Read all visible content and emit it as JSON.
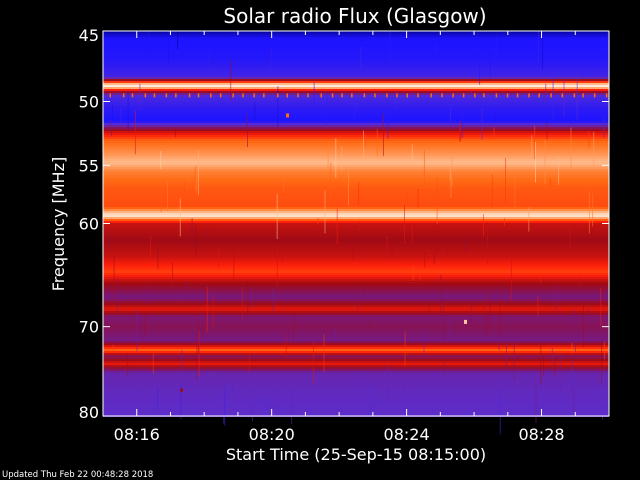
{
  "chart_data": {
    "type": "heatmap",
    "title": "Solar radio Flux (Glasgow)",
    "xlabel": "Start Time (25-Sep-15 08:15:00)",
    "ylabel": "Frequency [MHz]",
    "x_unit": "minutes after 08:15:00",
    "xlim": [
      0,
      15
    ],
    "ylim": [
      45,
      80
    ],
    "y_scale": "log",
    "y_inverted": true,
    "x_ticks": [
      {
        "value": 1,
        "label": "08:16"
      },
      {
        "value": 5,
        "label": "08:20"
      },
      {
        "value": 9,
        "label": "08:24"
      },
      {
        "value": 13,
        "label": "08:28"
      }
    ],
    "y_ticks": [
      {
        "value": 45,
        "label": "45"
      },
      {
        "value": 50,
        "label": "50"
      },
      {
        "value": 55,
        "label": "55"
      },
      {
        "value": 60,
        "label": "60"
      },
      {
        "value": 70,
        "label": "70"
      },
      {
        "value": 80,
        "label": "80"
      }
    ],
    "colormap": [
      "#00008c",
      "#1e14ff",
      "#5a2ed2",
      "#7a1878",
      "#a00a14",
      "#ff1e0a",
      "#ff6a14",
      "#ffc8a0",
      "#ffffff"
    ],
    "intensity_profile": [
      {
        "freq": 45.0,
        "level": 0.02
      },
      {
        "freq": 45.5,
        "level": 0.12
      },
      {
        "freq": 47.0,
        "level": 0.14
      },
      {
        "freq": 48.2,
        "level": 0.2
      },
      {
        "freq": 48.7,
        "level": 0.85
      },
      {
        "freq": 48.9,
        "level": 0.98
      },
      {
        "freq": 49.2,
        "level": 0.55
      },
      {
        "freq": 49.6,
        "level": 0.22
      },
      {
        "freq": 50.5,
        "level": 0.16
      },
      {
        "freq": 51.5,
        "level": 0.12
      },
      {
        "freq": 52.3,
        "level": 0.55
      },
      {
        "freq": 53.0,
        "level": 0.74
      },
      {
        "freq": 54.0,
        "level": 0.8
      },
      {
        "freq": 54.8,
        "level": 0.86
      },
      {
        "freq": 55.5,
        "level": 0.78
      },
      {
        "freq": 57.0,
        "level": 0.72
      },
      {
        "freq": 58.5,
        "level": 0.7
      },
      {
        "freq": 59.3,
        "level": 0.95
      },
      {
        "freq": 60.0,
        "level": 0.55
      },
      {
        "freq": 61.5,
        "level": 0.5
      },
      {
        "freq": 63.0,
        "level": 0.55
      },
      {
        "freq": 64.5,
        "level": 0.68
      },
      {
        "freq": 65.5,
        "level": 0.52
      },
      {
        "freq": 67.0,
        "level": 0.36
      },
      {
        "freq": 68.2,
        "level": 0.6
      },
      {
        "freq": 69.0,
        "level": 0.38
      },
      {
        "freq": 70.0,
        "level": 0.42
      },
      {
        "freq": 71.5,
        "level": 0.36
      },
      {
        "freq": 72.5,
        "level": 0.74
      },
      {
        "freq": 73.2,
        "level": 0.4
      },
      {
        "freq": 74.0,
        "level": 0.6
      },
      {
        "freq": 75.0,
        "level": 0.3
      },
      {
        "freq": 77.0,
        "level": 0.28
      },
      {
        "freq": 80.0,
        "level": 0.26
      }
    ]
  },
  "footer": {
    "updated_label": "Updated Thu Feb 22 00:48:28 2018"
  }
}
